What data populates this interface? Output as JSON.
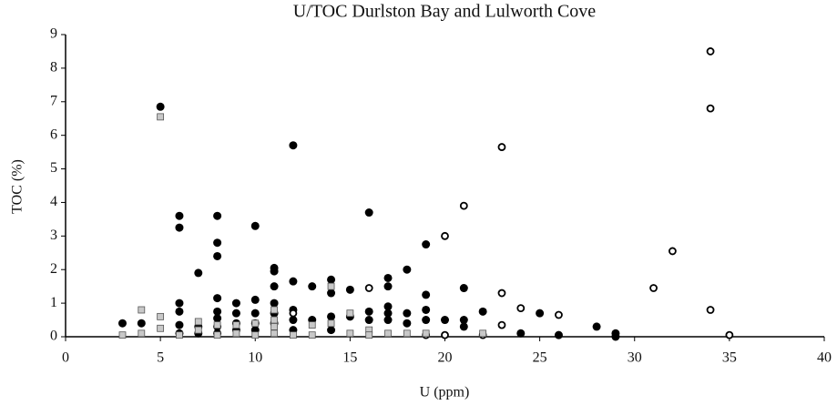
{
  "chart_data": {
    "type": "scatter",
    "title": "U/TOC Durlston Bay and Lulworth Cove",
    "x_label": "U (ppm)",
    "y_label": "TOC (%)",
    "xlim": [
      0,
      40
    ],
    "xticks": [
      0,
      5,
      10,
      15,
      20,
      25,
      30,
      35,
      40
    ],
    "ylim": [
      0,
      9
    ],
    "yticks": [
      0,
      1,
      2,
      3,
      4,
      5,
      6,
      7,
      8,
      9
    ],
    "grid": false,
    "series": [
      {
        "color": "#000000",
        "marker": "filled-circle",
        "x": [
          3,
          4,
          5,
          6,
          6,
          6,
          6,
          6,
          6,
          7,
          7,
          7,
          8,
          8,
          8,
          8,
          8,
          8,
          8,
          8,
          9,
          9,
          9,
          9,
          10,
          10,
          10,
          10,
          10,
          11,
          11,
          11,
          11,
          11,
          11,
          12,
          12,
          12,
          12,
          12,
          13,
          13,
          14,
          14,
          14,
          14,
          15,
          15,
          16,
          16,
          16,
          17,
          17,
          17,
          17,
          17,
          18,
          18,
          18,
          19,
          19,
          19,
          19,
          20,
          21,
          21,
          21,
          22,
          24,
          25,
          26,
          28,
          29,
          29
        ],
        "values": [
          0.4,
          0.4,
          6.85,
          3.6,
          3.25,
          1.0,
          0.75,
          0.35,
          0.1,
          1.9,
          0.3,
          0.1,
          3.6,
          2.8,
          2.4,
          1.15,
          0.75,
          0.55,
          0.3,
          0.1,
          1.0,
          0.7,
          0.4,
          0.2,
          3.3,
          1.1,
          0.7,
          0.4,
          0.2,
          2.05,
          1.95,
          1.5,
          1.0,
          0.7,
          0.4,
          5.7,
          1.65,
          0.8,
          0.5,
          0.2,
          1.5,
          0.5,
          1.7,
          1.3,
          0.6,
          0.2,
          1.4,
          0.6,
          3.7,
          0.75,
          0.5,
          1.75,
          1.5,
          0.9,
          0.7,
          0.5,
          2.0,
          0.7,
          0.4,
          2.75,
          1.25,
          0.8,
          0.5,
          0.5,
          1.45,
          0.5,
          0.3,
          0.75,
          0.1,
          0.7,
          0.05,
          0.3,
          0.1,
          0.0
        ]
      },
      {
        "color": "#000000",
        "marker": "open-circle",
        "x": [
          12,
          16,
          19,
          20,
          20,
          21,
          22,
          23,
          23,
          23,
          24,
          26,
          31,
          32,
          34,
          34,
          34,
          35
        ],
        "values": [
          0.7,
          1.45,
          0.05,
          3.0,
          0.05,
          3.9,
          0.05,
          5.65,
          1.3,
          0.35,
          0.85,
          0.65,
          1.45,
          2.55,
          8.5,
          6.8,
          0.8,
          0.05
        ]
      },
      {
        "color": "#c8c8c8",
        "marker": "square",
        "x": [
          3,
          4,
          4,
          5,
          5,
          5,
          6,
          7,
          7,
          8,
          8,
          9,
          9,
          10,
          10,
          11,
          11,
          11,
          11,
          12,
          13,
          13,
          14,
          14,
          15,
          15,
          16,
          16,
          17,
          18,
          19,
          22
        ],
        "values": [
          0.05,
          0.8,
          0.1,
          6.55,
          0.6,
          0.25,
          0.05,
          0.45,
          0.2,
          0.05,
          0.35,
          0.35,
          0.1,
          0.05,
          0.4,
          0.8,
          0.5,
          0.3,
          0.1,
          0.05,
          0.35,
          0.05,
          1.5,
          0.4,
          0.7,
          0.1,
          0.2,
          0.05,
          0.1,
          0.1,
          0.1,
          0.1
        ]
      }
    ]
  }
}
